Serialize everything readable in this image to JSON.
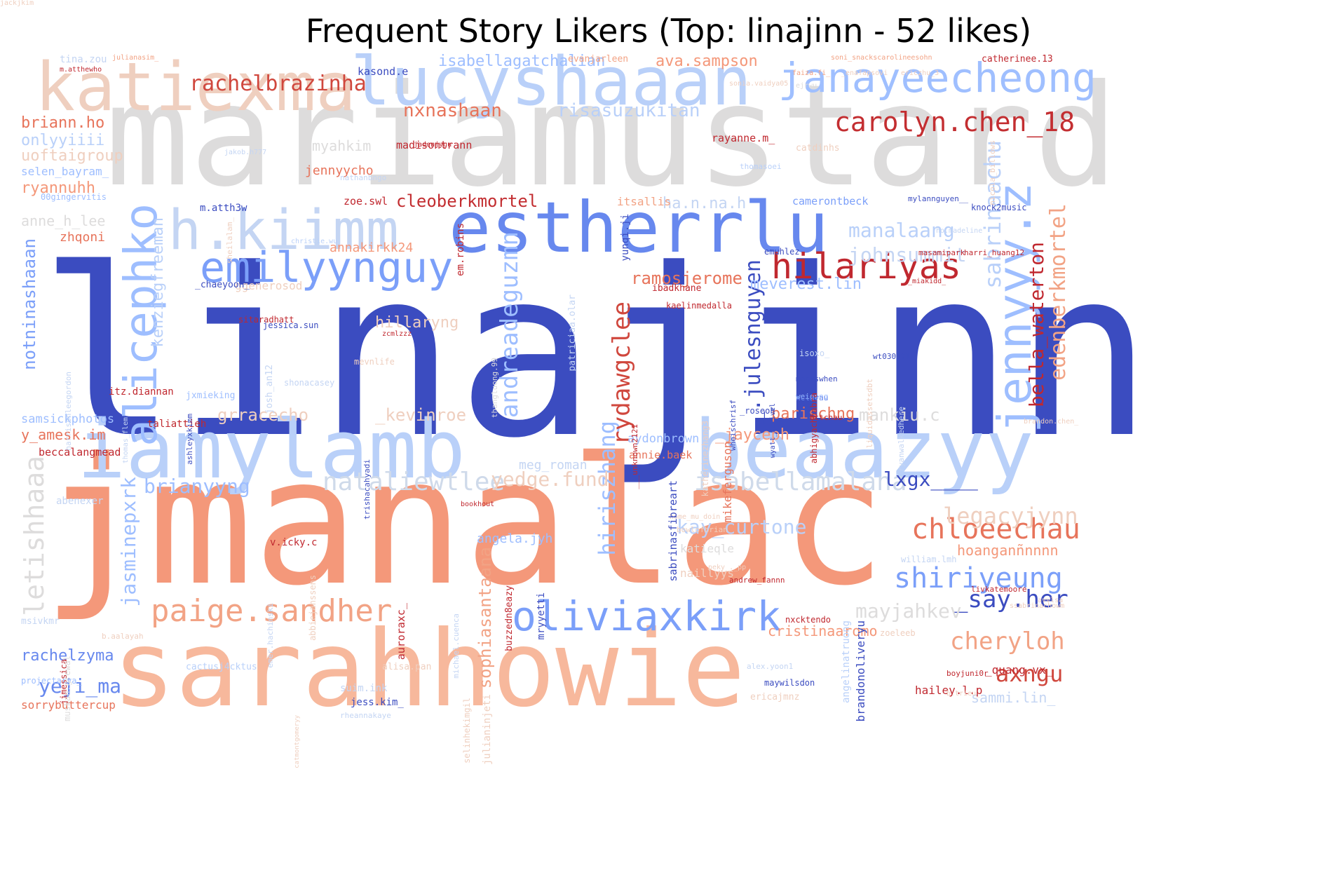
{
  "title": "Frequent Story Likers (Top: linajinn - 52 likes)",
  "words": [
    {
      "text": "linajinn",
      "color": "#3b4cc0",
      "bold": false
    },
    {
      "text": "jmanalac",
      "color": "#f4987a",
      "bold": false
    },
    {
      "text": "mariamustard",
      "color": "#dddcdc",
      "bold": false
    },
    {
      "text": "sarahhowie",
      "color": "#f7b89c",
      "bold": false
    },
    {
      "text": "iamylamb",
      "color": "#b9d0f9",
      "bold": false
    },
    {
      "text": "beaazyy",
      "color": "#b9d0f9",
      "bold": false
    },
    {
      "text": "katiexma",
      "color": "#efcfbf",
      "bold": false
    },
    {
      "text": "lucyshaaan",
      "color": "#b9d0f9",
      "bold": false
    },
    {
      "text": "estherrlu",
      "color": "#6788ee",
      "bold": false
    },
    {
      "text": "h.kiimm",
      "color": "#c4d5f3",
      "bold": false
    },
    {
      "text": "emilyynguy",
      "color": "#7b9ff9",
      "bold": false
    },
    {
      "text": "janayeecheong",
      "color": "#9fbfff",
      "bold": false
    },
    {
      "text": "hilariyas",
      "color": "#c0282f",
      "bold": false
    },
    {
      "text": "oliviaxkirk",
      "color": "#7b9ff9",
      "bold": false
    },
    {
      "text": "paige.sandher",
      "color": "#f2a385",
      "bold": false
    },
    {
      "text": "carolyn.chen_18",
      "color": "#c32e31",
      "bold": false
    },
    {
      "text": "rachelbrazinha",
      "color": "#d0473d",
      "bold": false
    },
    {
      "text": "alicephko",
      "color": "#9ebeff",
      "bold": false
    },
    {
      "text": "jennyyy.z",
      "color": "#9ebeff",
      "bold": false
    },
    {
      "text": "chloeechau",
      "color": "#e7745b",
      "bold": false
    },
    {
      "text": "shiriyeung",
      "color": "#7b9ff9",
      "bold": false
    },
    {
      "text": "nataliewtlee",
      "color": "#cfdaea",
      "bold": false
    },
    {
      "text": "isabellamalana",
      "color": "#cfdaea",
      "bold": false
    },
    {
      "text": "andreadeguzmn",
      "color": "#9ebeff",
      "bold": false
    },
    {
      "text": "hiriszhang",
      "color": "#9ebeff",
      "bold": false
    },
    {
      "text": "edenberkmortel",
      "color": "#f2a385",
      "bold": false
    },
    {
      "text": "bella_waterton",
      "color": "#c0282f",
      "bold": false
    },
    {
      "text": "sabrinaachu",
      "color": "#b9d0f9",
      "bold": false
    },
    {
      "text": "jasminepxrk",
      "color": "#9ebeff",
      "bold": false
    },
    {
      "text": "letishhaaa",
      "color": "#dddcdc",
      "bold": false
    },
    {
      "text": "rydawgclee",
      "color": "#d0473d",
      "bold": false
    },
    {
      "text": "_.julesnguyen",
      "color": "#3b4cc0",
      "bold": false
    },
    {
      "text": "manalaang",
      "color": "#b9d0f9",
      "bold": false
    },
    {
      "text": "johnsummit",
      "color": "#c4d5f3",
      "bold": false
    },
    {
      "text": "legacyjynn",
      "color": "#efcfbf",
      "bold": false
    },
    {
      "text": "kay_curtone",
      "color": "#b9d0f9",
      "bold": false
    },
    {
      "text": "cheryloh",
      "color": "#f2a385",
      "bold": false
    },
    {
      "text": "axngu",
      "color": "#d0473d",
      "bold": false
    },
    {
      "text": "_say.her",
      "color": "#3b4cc0",
      "bold": false
    },
    {
      "text": "mayjahkev",
      "color": "#dddcdc",
      "bold": false
    },
    {
      "text": "lxgx____",
      "color": "#3b4cc0",
      "bold": false
    },
    {
      "text": "brianyyng",
      "color": "#9ebeff",
      "bold": false
    },
    {
      "text": "yedge.fund",
      "color": "#efcfbf",
      "bold": false
    },
    {
      "text": "yeji_ma",
      "color": "#6788ee",
      "bold": false
    },
    {
      "text": "sophiasantaana",
      "color": "#f2a385",
      "bold": false
    },
    {
      "text": "nxnashaan",
      "color": "#e7745b",
      "bold": false
    },
    {
      "text": "risasuzukitan",
      "color": "#b9d0f9",
      "bold": false
    },
    {
      "text": "cleoberkmortel",
      "color": "#c32e31",
      "bold": false
    },
    {
      "text": "ramosjerome",
      "color": "#e7745b",
      "bold": false
    },
    {
      "text": "meverest.lin",
      "color": "#9ebeff",
      "bold": false
    },
    {
      "text": "notninashaaan",
      "color": "#7b9ff9",
      "bold": false
    },
    {
      "text": "kenziegfreeman",
      "color": "#b9d0f9",
      "bold": false
    },
    {
      "text": "hillaryng",
      "color": "#efcfbf",
      "bold": false
    },
    {
      "text": "annakirkk24",
      "color": "#f4987a",
      "bold": false
    },
    {
      "text": "grracecho",
      "color": "#efcfbf",
      "bold": false
    },
    {
      "text": "_kevinroe",
      "color": "#efcfbf",
      "bold": false
    },
    {
      "text": "parischng",
      "color": "#e7745b",
      "bold": false
    },
    {
      "text": "mankiu.c",
      "color": "#dddcdc",
      "bold": false
    },
    {
      "text": "cristinaaromo",
      "color": "#f4987a",
      "bold": false
    },
    {
      "text": "rachelzyma",
      "color": "#6788ee",
      "bold": false
    },
    {
      "text": "sammi.lin_",
      "color": "#c4d5f3",
      "bold": false
    },
    {
      "text": "hoanganñnnnn",
      "color": "#f4987a",
      "bold": false
    },
    {
      "text": "ava.sampson",
      "color": "#f4987a",
      "bold": false
    },
    {
      "text": "isabellagatchalian",
      "color": "#9ebeff",
      "bold": false
    },
    {
      "text": "briann.ho",
      "color": "#e7745b",
      "bold": false
    },
    {
      "text": "onlyyiiii",
      "color": "#b9d0f9",
      "bold": false
    },
    {
      "text": "uoftaigroup",
      "color": "#efcfbf",
      "bold": false
    },
    {
      "text": "selen_bayram_",
      "color": "#9ebeff",
      "bold": false
    },
    {
      "text": "ryannuhh",
      "color": "#f4987a",
      "bold": false
    },
    {
      "text": "anne_h_lee",
      "color": "#dddcdc",
      "bold": false
    },
    {
      "text": "zhqoni",
      "color": "#e7745b",
      "bold": false
    },
    {
      "text": "myahkim",
      "color": "#dddcdc",
      "bold": false
    },
    {
      "text": "jennyycho",
      "color": "#e7745b",
      "bold": false
    },
    {
      "text": "madisontrann",
      "color": "#c0282f",
      "bold": false
    },
    {
      "text": "zoe.swl",
      "color": "#c0282f",
      "bold": false
    },
    {
      "text": "ha.n.na.h",
      "color": "#c4d5f3",
      "bold": false
    },
    {
      "text": "camerontbeck",
      "color": "#7b9ff9",
      "bold": false
    },
    {
      "text": "itsallis",
      "color": "#f2a385",
      "bold": false
    },
    {
      "text": "angela.jyh",
      "color": "#9ebeff",
      "bold": false
    },
    {
      "text": "meg_roman",
      "color": "#c4d5f3",
      "bold": false
    },
    {
      "text": "aydonbrown",
      "color": "#9ebeff",
      "bold": false
    },
    {
      "text": "annie.baek",
      "color": "#e7745b",
      "bold": false
    },
    {
      "text": "_jayceph",
      "color": "#f4987a",
      "bold": false
    },
    {
      "text": "katieqle",
      "color": "#dddcdc",
      "bold": false
    },
    {
      "text": "naillyys",
      "color": "#efcfbf",
      "bold": false
    },
    {
      "text": "y_amesk.im",
      "color": "#e7745b",
      "bold": false
    },
    {
      "text": "samsickphotos",
      "color": "#9ebeff",
      "bold": false
    },
    {
      "text": "beccalangmead",
      "color": "#c0282f",
      "bold": false
    },
    {
      "text": "rayanne.m_",
      "color": "#c0282f",
      "bold": false
    },
    {
      "text": "m.atth3w",
      "color": "#3b4cc0",
      "bold": false
    },
    {
      "text": "ggenerosod",
      "color": "#efcfbf",
      "bold": false
    },
    {
      "text": "sorrybuttercup",
      "color": "#e7745b",
      "bold": false
    },
    {
      "text": "kasond.e",
      "color": "#3b4cc0",
      "bold": false
    },
    {
      "text": "taliattieh",
      "color": "#c0282f",
      "bold": false
    },
    {
      "text": "itz.diannan",
      "color": "#c0282f",
      "bold": false
    },
    {
      "text": "v.icky.c",
      "color": "#c0282f",
      "bold": false
    },
    {
      "text": "catherinee.13",
      "color": "#c0282f",
      "bold": false
    },
    {
      "text": "hailey.l.p",
      "color": "#c0282f",
      "bold": false
    },
    {
      "text": "_quang.vx_",
      "color": "#c0282f",
      "bold": false
    },
    {
      "text": "evanjarleen",
      "color": "#f2a385",
      "bold": false
    },
    {
      "text": "tina.zou",
      "color": "#c4d5f3",
      "bold": false
    },
    {
      "text": "julianasim_",
      "color": "#f2a385",
      "bold": false
    },
    {
      "text": "m.atthewho",
      "color": "#c0282f",
      "bold": false
    },
    {
      "text": "soni_snackscarolineesohn",
      "color": "#f2a385",
      "bold": false
    },
    {
      "text": "faiza.fi_",
      "color": "#f2a385",
      "bold": false
    },
    {
      "text": "_enafapsovi",
      "color": "#efcfbf",
      "bold": false
    },
    {
      "text": "ericzhu_3",
      "color": "#efcfbf",
      "bold": false
    },
    {
      "text": "sonia.vaidya05",
      "color": "#efcfbf",
      "bold": false
    },
    {
      "text": "ejrwu",
      "color": "#dddcdc",
      "bold": false
    },
    {
      "text": "catdinhs",
      "color": "#efcfbf",
      "bold": false
    },
    {
      "text": "thomasoei",
      "color": "#b9d0f9",
      "bold": false
    },
    {
      "text": "00gingervitis",
      "color": "#9ebeff",
      "bold": false
    },
    {
      "text": "nathanbngo",
      "color": "#c4d5f3",
      "bold": false
    },
    {
      "text": "jakob.h777",
      "color": "#c4d5f3",
      "bold": false
    },
    {
      "text": "jadenjygu",
      "color": "#c0282f",
      "bold": false
    },
    {
      "text": "mylannguyen__",
      "color": "#3b4cc0",
      "bold": false
    },
    {
      "text": "knock2music",
      "color": "#3b4cc0",
      "bold": false
    },
    {
      "text": "ho.madeline",
      "color": "#c4d5f3",
      "bold": false
    },
    {
      "text": "masamipark",
      "color": "#c0282f",
      "bold": false
    },
    {
      "text": "harri_huang12",
      "color": "#c0282f",
      "bold": false
    },
    {
      "text": "_miakidd_",
      "color": "#c0282f",
      "bold": false
    },
    {
      "text": "christie.wu",
      "color": "#b9d0f9",
      "bold": false
    },
    {
      "text": "emuhlez",
      "color": "#3b4cc0",
      "bold": false
    },
    {
      "text": "ibadkhane",
      "color": "#c0282f",
      "bold": false
    },
    {
      "text": "kaelinmedalla",
      "color": "#c0282f",
      "bold": false
    },
    {
      "text": "_chaeyoon_",
      "color": "#3b4cc0",
      "bold": false
    },
    {
      "text": "sitaradhatt",
      "color": "#c0282f",
      "bold": false
    },
    {
      "text": "jessica.sun",
      "color": "#3b4cc0",
      "bold": false
    },
    {
      "text": "zcmlzzz",
      "color": "#c0282f",
      "bold": false
    },
    {
      "text": "mevnlife",
      "color": "#efcfbf",
      "bold": false
    },
    {
      "text": "shonacasey",
      "color": "#c4d5f3",
      "bold": false
    },
    {
      "text": "jxmieking",
      "color": "#9ebeff",
      "bold": false
    },
    {
      "text": "wt030121",
      "color": "#3b4cc0",
      "bold": false
    },
    {
      "text": "isoxo_",
      "color": "#c4d5f3",
      "bold": false
    },
    {
      "text": "mackswhen",
      "color": "#3b4cc0",
      "bold": false
    },
    {
      "text": "weionng",
      "color": "#9ebeff",
      "bold": false
    },
    {
      "text": "xclarau",
      "color": "#6788ee",
      "bold": false
    },
    {
      "text": "bttchau",
      "color": "#c0282f",
      "bold": false
    },
    {
      "text": "brandon.chen_",
      "color": "#efcfbf",
      "bold": false
    },
    {
      "text": "_roseoh",
      "color": "#3b4cc0",
      "bold": false
    },
    {
      "text": "abenexer",
      "color": "#c4d5f3",
      "bold": false
    },
    {
      "text": "bookhout",
      "color": "#c0282f",
      "bold": false
    },
    {
      "text": "home_mu_doin",
      "color": "#efcfbf",
      "bold": false
    },
    {
      "text": "bowlofbrian",
      "color": "#efcfbf",
      "bold": false
    },
    {
      "text": "william.lmh",
      "color": "#c4d5f3",
      "bold": false
    },
    {
      "text": "livkatemoore",
      "color": "#c0282f",
      "bold": false
    },
    {
      "text": "avvlsa",
      "color": "#efcfbf",
      "bold": false
    },
    {
      "text": "ssabrinachowm",
      "color": "#efcfbf",
      "bold": false
    },
    {
      "text": "nxcktendo",
      "color": "#c0282f",
      "bold": false
    },
    {
      "text": "zoeleeb",
      "color": "#efcfbf",
      "bold": false
    },
    {
      "text": "andrew_fannn",
      "color": "#c0282f",
      "bold": false
    },
    {
      "text": "peky_._pp",
      "color": "#efcfbf",
      "bold": false
    },
    {
      "text": "msivkmr",
      "color": "#c4d5f3",
      "bold": false
    },
    {
      "text": "b.aalayah",
      "color": "#efcfbf",
      "bold": false
    },
    {
      "text": "cactusj4cktus",
      "color": "#b9d0f9",
      "bold": false
    },
    {
      "text": "projectarya_",
      "color": "#9ebeff",
      "bold": false
    },
    {
      "text": "alisa.pan",
      "color": "#efcfbf",
      "bold": false
    },
    {
      "text": "suim.ink",
      "color": "#c4d5f3",
      "bold": false
    },
    {
      "text": "jess.kim_",
      "color": "#3b4cc0",
      "bold": false
    },
    {
      "text": "rheannakaye",
      "color": "#c4d5f3",
      "bold": false
    },
    {
      "text": "alex.yoon1",
      "color": "#c4d5f3",
      "bold": false
    },
    {
      "text": "maywilsdon",
      "color": "#3b4cc0",
      "bold": false
    },
    {
      "text": "ericajmnz",
      "color": "#efcfbf",
      "bold": false
    },
    {
      "text": "boyjuni0r",
      "color": "#c0282f",
      "bold": false
    },
    {
      "text": "b.trieu_",
      "color": "#efcfbf",
      "bold": false
    },
    {
      "text": "jimessica",
      "color": "#c0282f",
      "bold": false
    },
    {
      "text": "muskan.grewal",
      "color": "#dddcdc",
      "bold": false
    },
    {
      "text": "emer.hachinski",
      "color": "#c4d5f3",
      "bold": false
    },
    {
      "text": "abbiejanssens",
      "color": "#efcfbf",
      "bold": false
    },
    {
      "text": "auroraxc_",
      "color": "#c0282f",
      "bold": false
    },
    {
      "text": "michael.cuenca",
      "color": "#c4d5f3",
      "bold": false
    },
    {
      "text": "buzzedn8eazy",
      "color": "#c0282f",
      "bold": false
    },
    {
      "text": "mryyetti",
      "color": "#3b4cc0",
      "bold": false
    },
    {
      "text": "selinhekimgil",
      "color": "#efcfbf",
      "bold": false
    },
    {
      "text": "julianinjeti",
      "color": "#efcfbf",
      "bold": false
    },
    {
      "text": "catmontgomeryy",
      "color": "#efcfbf",
      "bold": false
    },
    {
      "text": "harrisonleegordon",
      "color": "#c4d5f3",
      "bold": false
    },
    {
      "text": "thomas_flem",
      "color": "#c4d5f3",
      "bold": false
    },
    {
      "text": "ashleyxkimm",
      "color": "#3b4cc0",
      "bold": false
    },
    {
      "text": "josh_an12",
      "color": "#c4d5f3",
      "bold": false
    },
    {
      "text": "sheilalam_",
      "color": "#efcfbf",
      "bold": false
    },
    {
      "text": "em.robins",
      "color": "#c0282f",
      "bold": false
    },
    {
      "text": "yunqi.ji",
      "color": "#3b4cc0",
      "bold": false
    },
    {
      "text": "patriciaa.olar",
      "color": "#c4d5f3",
      "bold": false
    },
    {
      "text": "thangluong.99",
      "color": "#dddcdc",
      "bold": false
    },
    {
      "text": "___unknown2121",
      "color": "#c0282f",
      "bold": false
    },
    {
      "text": "sabrinasfibreart",
      "color": "#3b4cc0",
      "bold": false
    },
    {
      "text": "mikeferguson_",
      "color": "#e7745b",
      "bold": false
    },
    {
      "text": "abhigyachhabra",
      "color": "#c0282f",
      "bold": false
    },
    {
      "text": "whoischrisf",
      "color": "#3b4cc0",
      "bold": false
    },
    {
      "text": "liquidassetsdbt",
      "color": "#efcfbf",
      "bold": false
    },
    {
      "text": "nicola_billows",
      "color": "#efcfbf",
      "bold": false
    },
    {
      "text": "ryanwalkedhere",
      "color": "#c4d5f3",
      "bold": false
    },
    {
      "text": "katherinezhang3",
      "color": "#efcfbf",
      "bold": false
    },
    {
      "text": "angelinatruong",
      "color": "#b9d0f9",
      "bold": false
    },
    {
      "text": "brandonoliveryu",
      "color": "#3b4cc0",
      "bold": false
    },
    {
      "text": "trishacahyadi",
      "color": "#3b4cc0",
      "bold": false
    },
    {
      "text": "wyatt_harivel",
      "color": "#3b4cc0",
      "bold": false
    },
    {
      "text": "jackjkim",
      "color": "#efcfbf",
      "bold": false
    }
  ]
}
